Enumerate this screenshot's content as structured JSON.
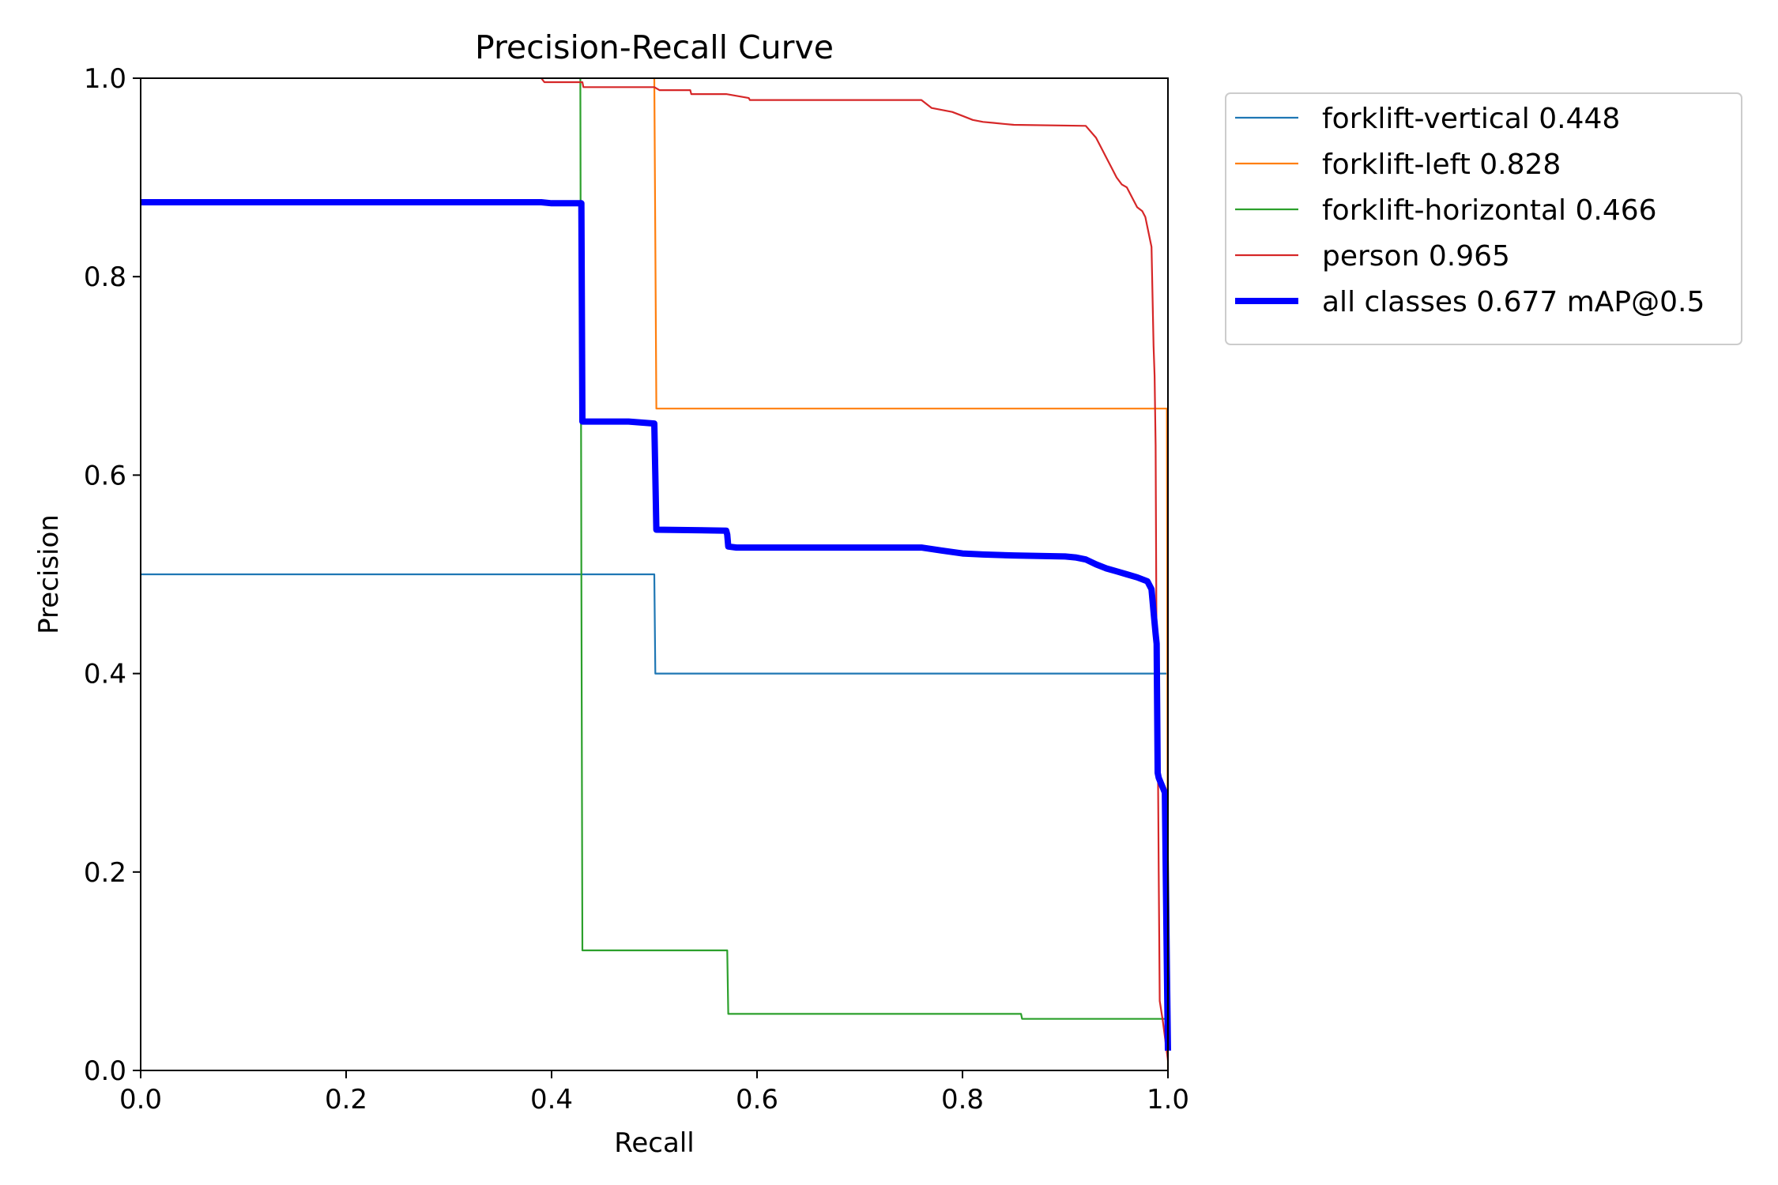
{
  "chart_data": {
    "type": "line",
    "title": "Precision-Recall Curve",
    "xlabel": "Recall",
    "ylabel": "Precision",
    "xlim": [
      0.0,
      1.0
    ],
    "ylim": [
      0.0,
      1.0
    ],
    "xticks": [
      "0.0",
      "0.2",
      "0.4",
      "0.6",
      "0.8",
      "1.0"
    ],
    "yticks": [
      "0.0",
      "0.2",
      "0.4",
      "0.6",
      "0.8",
      "1.0"
    ],
    "grid": false,
    "legend_position": "outside-upper-right",
    "series": [
      {
        "name": "forklift-vertical 0.448",
        "color": "#1f77b4",
        "x": [
          0.0,
          0.5,
          0.501,
          0.998,
          1.0
        ],
        "y": [
          0.5,
          0.5,
          0.4,
          0.4,
          0.4
        ]
      },
      {
        "name": "forklift-left 0.828",
        "color": "#ff7f0e",
        "x": [
          0.5,
          0.5,
          0.502,
          0.998,
          0.999,
          1.0
        ],
        "y": [
          1.0,
          1.0,
          0.667,
          0.667,
          0.667,
          0.0
        ]
      },
      {
        "name": "forklift-horizontal 0.466",
        "color": "#2ca02c",
        "x": [
          0.428,
          0.429,
          0.43,
          0.571,
          0.572,
          0.857,
          0.858,
          0.998,
          1.0
        ],
        "y": [
          1.0,
          0.5,
          0.121,
          0.121,
          0.057,
          0.057,
          0.052,
          0.052,
          0.052
        ]
      },
      {
        "name": "person 0.965",
        "color": "#d62728",
        "x": [
          0.39,
          0.393,
          0.43,
          0.431,
          0.5,
          0.505,
          0.535,
          0.536,
          0.57,
          0.592,
          0.593,
          0.76,
          0.77,
          0.79,
          0.8,
          0.81,
          0.82,
          0.83,
          0.84,
          0.85,
          0.92,
          0.93,
          0.935,
          0.94,
          0.945,
          0.95,
          0.955,
          0.96,
          0.965,
          0.97,
          0.975,
          0.978,
          0.98,
          0.984,
          0.986,
          0.987,
          0.988,
          0.989,
          0.99,
          0.991,
          0.992,
          0.995,
          1.0
        ],
        "y": [
          1.0,
          0.996,
          0.996,
          0.991,
          0.991,
          0.988,
          0.988,
          0.984,
          0.984,
          0.98,
          0.978,
          0.978,
          0.97,
          0.966,
          0.962,
          0.958,
          0.956,
          0.955,
          0.954,
          0.953,
          0.952,
          0.94,
          0.93,
          0.92,
          0.91,
          0.9,
          0.893,
          0.89,
          0.88,
          0.87,
          0.866,
          0.86,
          0.85,
          0.83,
          0.73,
          0.7,
          0.63,
          0.4,
          0.35,
          0.2,
          0.07,
          0.05,
          0.01
        ]
      },
      {
        "name": "all classes 0.677 mAP@0.5",
        "color": "#0000ff",
        "x": [
          0.0,
          0.39,
          0.4,
          0.428,
          0.429,
          0.43,
          0.475,
          0.5,
          0.501,
          0.502,
          0.57,
          0.571,
          0.572,
          0.58,
          0.76,
          0.78,
          0.8,
          0.82,
          0.85,
          0.9,
          0.91,
          0.92,
          0.93,
          0.94,
          0.95,
          0.96,
          0.97,
          0.98,
          0.984,
          0.986,
          0.988,
          0.989,
          0.99,
          0.991,
          0.993,
          0.995,
          0.997,
          0.999,
          1.0
        ],
        "y": [
          0.875,
          0.875,
          0.874,
          0.874,
          0.874,
          0.654,
          0.654,
          0.652,
          0.6,
          0.545,
          0.544,
          0.54,
          0.528,
          0.527,
          0.527,
          0.524,
          0.521,
          0.52,
          0.519,
          0.518,
          0.517,
          0.515,
          0.51,
          0.506,
          0.503,
          0.5,
          0.497,
          0.493,
          0.485,
          0.462,
          0.44,
          0.43,
          0.3,
          0.295,
          0.29,
          0.285,
          0.28,
          0.1,
          0.02
        ],
        "stroke_width": "thick"
      }
    ]
  }
}
